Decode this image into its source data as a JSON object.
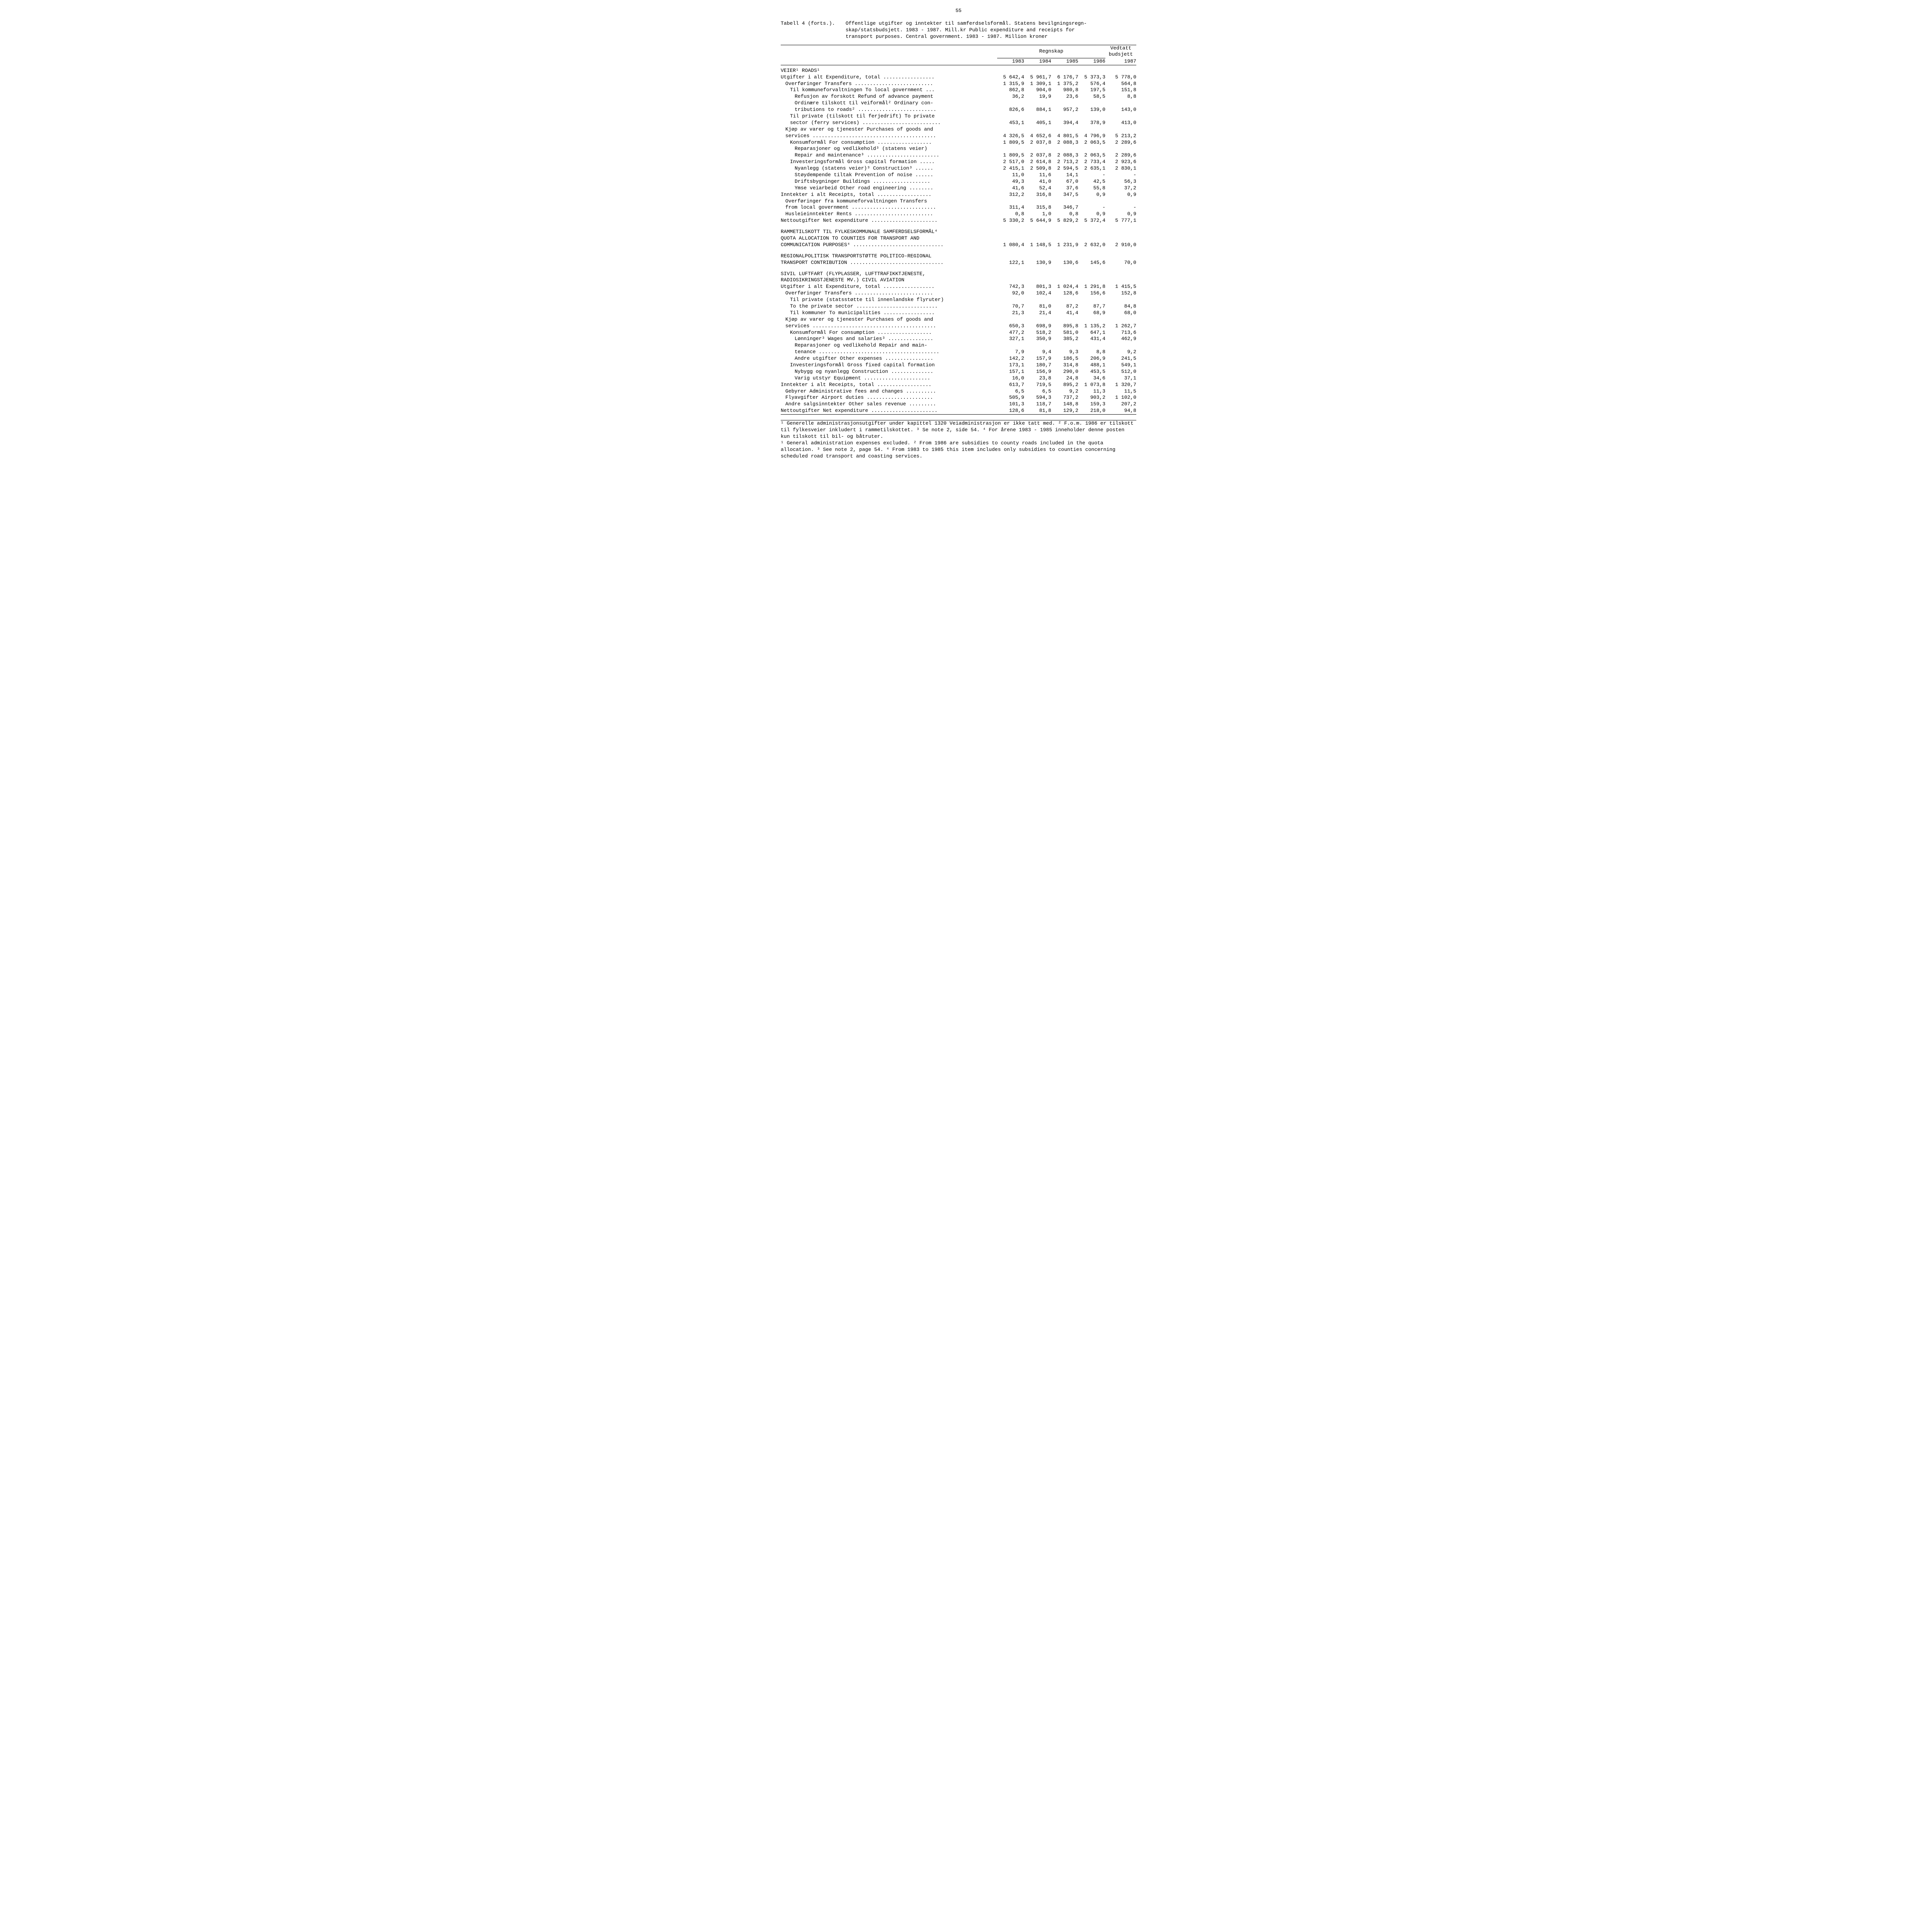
{
  "page_number": "55",
  "table_header": {
    "label": "Tabell 4 (forts.).",
    "line1": "Offentlige utgifter og inntekter til samferdselsformål.  Statens bevilgningsregn-",
    "line2": "skap/statsbudsjett.  1983 - 1987.  Mill.kr   Public expenditure and receipts for",
    "line3": "transport purposes.  Central government.  1983 - 1987.  Million kroner"
  },
  "column_headers": {
    "regnskap": "Regnskap",
    "budsjett": "Vedtatt budsjett",
    "years": [
      "1983",
      "1984",
      "1985",
      "1986",
      "1987"
    ]
  },
  "sections": [
    {
      "heading": "VEIER¹   ROADS¹",
      "rows": [
        {
          "label": "Utgifter i alt  Expenditure, total .................",
          "vals": [
            "5 642,4",
            "5 961,7",
            "6 176,7",
            "5 373,3",
            "5 778,0"
          ]
        },
        {
          "label": "Overføringer   Transfers ..........................",
          "indent": 1,
          "vals": [
            "1 315,9",
            "1 309,1",
            "1 375,2",
            "576,4",
            "564,8"
          ]
        },
        {
          "label": "Til kommuneforvaltningen  To local government ...",
          "indent": 2,
          "vals": [
            "862,8",
            "904,0",
            "980,8",
            "197,5",
            "151,8"
          ]
        },
        {
          "label": "Refusjon av forskott  Refund of advance payment",
          "indent": 3,
          "vals": [
            "36,2",
            "19,9",
            "23,6",
            "58,5",
            "8,8"
          ]
        },
        {
          "label": "Ordinære tilskott til veiformål²  Ordinary con-",
          "indent": 3,
          "vals": [
            "",
            "",
            "",
            "",
            ""
          ]
        },
        {
          "label": "tributions to roads² ..........................",
          "indent": 3,
          "vals": [
            "826,6",
            "884,1",
            "957,2",
            "139,0",
            "143,0"
          ]
        },
        {
          "label": "Til private (tilskott til ferjedrift)  To private",
          "indent": 2,
          "vals": [
            "",
            "",
            "",
            "",
            ""
          ]
        },
        {
          "label": "sector (ferry services) ..........................",
          "indent": 2,
          "vals": [
            "453,1",
            "405,1",
            "394,4",
            "378,9",
            "413,0"
          ]
        },
        {
          "label": "Kjøp av varer og tjenester  Purchases of goods and",
          "indent": 1,
          "vals": [
            "",
            "",
            "",
            "",
            ""
          ]
        },
        {
          "label": "services .........................................",
          "indent": 1,
          "vals": [
            "4 326,5",
            "4 652,6",
            "4 801,5",
            "4 796,9",
            "5 213,2"
          ]
        },
        {
          "label": "Konsumformål  For consumption ..................",
          "indent": 2,
          "vals": [
            "1 809,5",
            "2 037,8",
            "2 088,3",
            "2 063,5",
            "2 289,6"
          ]
        },
        {
          "label": "Reparasjoner og vedlikehold³ (statens veier)",
          "indent": 3,
          "vals": [
            "",
            "",
            "",
            "",
            ""
          ]
        },
        {
          "label": "Repair and maintenance³ ........................",
          "indent": 3,
          "vals": [
            "1 809,5",
            "2 037,8",
            "2 088,3",
            "2 063,5",
            "2 289,6"
          ]
        },
        {
          "label": "Investeringsformål  Gross capital formation .....",
          "indent": 2,
          "vals": [
            "2 517,0",
            "2 614,8",
            "2 713,2",
            "2 733,4",
            "2 923,6"
          ]
        },
        {
          "label": "Nyanlegg (statens veier)³  Construction³ ......",
          "indent": 3,
          "vals": [
            "2 415,1",
            "2 509,8",
            "2 594,5",
            "2 635,1",
            "2 830,1"
          ]
        },
        {
          "label": "Støydempende tiltak  Prevention of noise ......",
          "indent": 3,
          "vals": [
            "11,0",
            "11,6",
            "14,1",
            "-",
            "-"
          ]
        },
        {
          "label": "Driftsbygninger  Buildings ...................",
          "indent": 3,
          "vals": [
            "49,3",
            "41,0",
            "67,0",
            "42,5",
            "56,3"
          ]
        },
        {
          "label": "Ymse veiarbeid  Other road engineering ........",
          "indent": 3,
          "vals": [
            "41,6",
            "52,4",
            "37,6",
            "55,8",
            "37,2"
          ]
        },
        {
          "label": "Inntekter i alt  Receipts, total ..................",
          "vals": [
            "312,2",
            "316,8",
            "347,5",
            "0,9",
            "0,9"
          ]
        },
        {
          "label": "Overføringer fra kommuneforvaltningen  Transfers",
          "indent": 1,
          "vals": [
            "",
            "",
            "",
            "",
            ""
          ]
        },
        {
          "label": "from local government ............................",
          "indent": 1,
          "vals": [
            "311,4",
            "315,8",
            "346,7",
            "-",
            "-"
          ]
        },
        {
          "label": "Husleieinntekter  Rents ..........................",
          "indent": 1,
          "vals": [
            "0,8",
            "1,0",
            "0,8",
            "0,9",
            "0,9"
          ]
        },
        {
          "label": "Nettoutgifter  Net expenditure ......................",
          "vals": [
            "5 330,2",
            "5 644,9",
            "5 829,2",
            "5 372,4",
            "5 777,1"
          ]
        }
      ]
    },
    {
      "heading": "RAMMETILSKOTT TIL FYLKESKOMMUNALE SAMFERDSELSFORMÅL⁴\nQUOTA ALLOCATION TO COUNTIES FOR TRANSPORT AND\nCOMMUNICATION PURPOSES⁴ ..............................",
      "single_value_row": {
        "vals": [
          "1 080,4",
          "1 148,5",
          "1 231,9",
          "2 632,0",
          "2 910,0"
        ]
      }
    },
    {
      "heading": "REGIONALPOLITISK TRANSPORTSTØTTE  POLITICO-REGIONAL\nTRANSPORT CONTRIBUTION ...............................",
      "single_value_row": {
        "vals": [
          "122,1",
          "130,9",
          "130,6",
          "145,6",
          "70,0"
        ]
      }
    },
    {
      "heading": "SIVIL LUFTFART (FLYPLASSER, LUFTTRAFIKKTJENESTE,\nRADIOSIKRINGSTJENESTE MV.)  CIVIL AVIATION",
      "rows": [
        {
          "label": "Utgifter i alt  Expenditure, total .................",
          "vals": [
            "742,3",
            "801,3",
            "1 024,4",
            "1 291,8",
            "1 415,5"
          ]
        },
        {
          "label": "Overføringer   Transfers ..........................",
          "indent": 1,
          "vals": [
            "92,0",
            "102,4",
            "128,6",
            "156,6",
            "152,8"
          ]
        },
        {
          "label": "Til private (statsstøtte til innenlandske flyruter)",
          "indent": 2,
          "vals": [
            "",
            "",
            "",
            "",
            ""
          ]
        },
        {
          "label": "To the private sector ...........................",
          "indent": 2,
          "vals": [
            "70,7",
            "81,0",
            "87,2",
            "87,7",
            "84,8"
          ]
        },
        {
          "label": "Til kommuner  To municipalities .................",
          "indent": 2,
          "vals": [
            "21,3",
            "21,4",
            "41,4",
            "68,9",
            "68,0"
          ]
        },
        {
          "label": "Kjøp av varer og tjenester  Purchases of goods and",
          "indent": 1,
          "vals": [
            "",
            "",
            "",
            "",
            ""
          ]
        },
        {
          "label": "services .........................................",
          "indent": 1,
          "vals": [
            "650,3",
            "698,9",
            "895,8",
            "1 135,2",
            "1 262,7"
          ]
        },
        {
          "label": "Konsumformål  For consumption ..................",
          "indent": 2,
          "vals": [
            "477,2",
            "518,2",
            "581,0",
            "647,1",
            "713,6"
          ]
        },
        {
          "label": "Lønninger³  Wages and salaries³ ...............",
          "indent": 3,
          "vals": [
            "327,1",
            "350,9",
            "385,2",
            "431,4",
            "462,9"
          ]
        },
        {
          "label": "Reparasjoner og vedlikehold  Repair and main-",
          "indent": 3,
          "vals": [
            "",
            "",
            "",
            "",
            ""
          ]
        },
        {
          "label": "tenance ........................................",
          "indent": 3,
          "vals": [
            "7,9",
            "9,4",
            "9,3",
            "8,8",
            "9,2"
          ]
        },
        {
          "label": "Andre utgifter  Other expenses ................",
          "indent": 3,
          "vals": [
            "142,2",
            "157,9",
            "186,5",
            "206,9",
            "241,5"
          ]
        },
        {
          "label": "Investeringsformål  Gross fixed capital formation",
          "indent": 2,
          "vals": [
            "173,1",
            "180,7",
            "314,8",
            "488,1",
            "549,1"
          ]
        },
        {
          "label": "Nybygg og nyanlegg  Construction ..............",
          "indent": 3,
          "vals": [
            "157,1",
            "156,9",
            "290,0",
            "453,5",
            "512,0"
          ]
        },
        {
          "label": "Varig utstyr  Equipment ......................",
          "indent": 3,
          "vals": [
            "16,0",
            "23,8",
            "24,8",
            "34,6",
            "37,1"
          ]
        },
        {
          "label": "Inntekter i alt  Receipts, total ..................",
          "vals": [
            "613,7",
            "719,5",
            "895,2",
            "1 073,8",
            "1 320,7"
          ]
        },
        {
          "label": "Gebyrer  Administrative fees and changes ..........",
          "indent": 1,
          "vals": [
            "6,5",
            "6,5",
            "9,2",
            "11,3",
            "11,5"
          ]
        },
        {
          "label": "Flyavgifter  Airport duties ......................",
          "indent": 1,
          "vals": [
            "505,9",
            "594,3",
            "737,2",
            "903,2",
            "1 102,0"
          ]
        },
        {
          "label": "Andre salgsinntekter  Other sales revenue .........",
          "indent": 1,
          "vals": [
            "101,3",
            "118,7",
            "148,8",
            "159,3",
            "207,2"
          ]
        },
        {
          "label": "Nettoutgifter  Net expenditure ......................",
          "vals": [
            "128,6",
            "81,8",
            "129,2",
            "218,0",
            "94,8"
          ],
          "last": true
        }
      ]
    }
  ],
  "footnotes": {
    "no": "¹ Generelle administrasjonsutgifter under kapittel 1320 Veiadministrasjon er ikke tatt med.  ² F.o.m. 1986 er tilskott til fylkesveier inkludert i rammetilskottet.  ³ Se note 2, side 54.  ⁴ For årene 1983 - 1985 inneholder denne posten kun tilskott til bil- og båtruter.",
    "en": "¹ General administration expenses excluded.  ² From 1986 are subsidies to county roads included in the quota allocation.  ³ See note 2, page 54.  ⁴ From 1983 to 1985 this item includes only subsidies to counties concerning scheduled road transport and coasting services."
  }
}
